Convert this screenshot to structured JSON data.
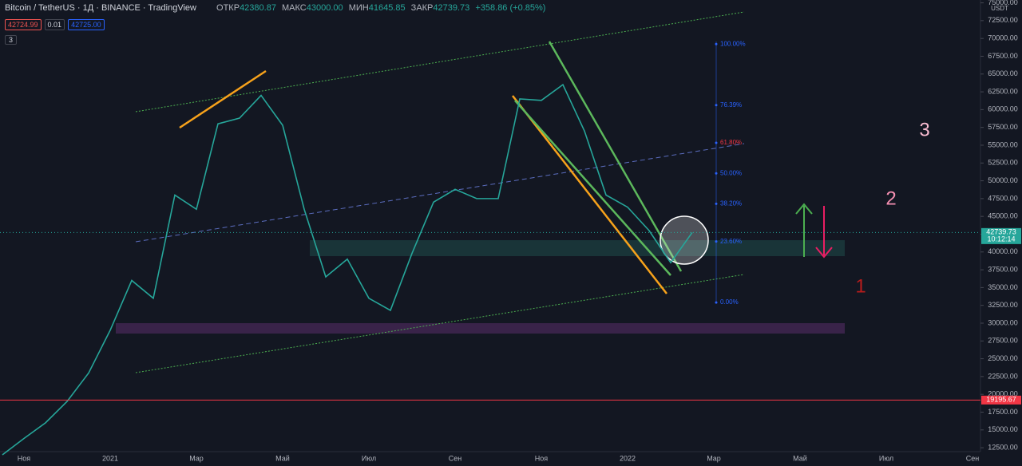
{
  "header": {
    "symbol": "Bitcoin / TetherUS · 1Д · BINANCE · TradingView",
    "ohlc": [
      {
        "label": "ОТКР",
        "value": "42380.87"
      },
      {
        "label": "МАКС",
        "value": "43000.00"
      },
      {
        "label": "МИН",
        "value": "41645.85"
      },
      {
        "label": "ЗАКР",
        "value": "42739.73"
      }
    ],
    "change": "+358.86 (+0.85%)"
  },
  "order_panel": {
    "sell": "42724.99",
    "qty": "0.01",
    "buy": "42725.00"
  },
  "indicator_count": "3",
  "chart_data": {
    "type": "line",
    "currency": "USDT",
    "categories": [
      null,
      "Ноя",
      null,
      null,
      null,
      "2021",
      null,
      null,
      null,
      "Мар",
      null,
      null,
      null,
      "Май",
      null,
      null,
      null,
      "Июл",
      null,
      null,
      null,
      "Сен",
      null,
      null,
      null,
      "Ноя",
      null,
      null,
      null,
      "2022",
      null,
      null,
      null,
      "Мар",
      null,
      null,
      null,
      "Май",
      null,
      null,
      null,
      "Июл",
      null,
      null,
      null,
      "Сен"
    ],
    "series": [
      {
        "color": "#26a69a",
        "values": [
          11500,
          13800,
          16000,
          19000,
          23000,
          29000,
          36000,
          33500,
          48000,
          46000,
          58000,
          58800,
          62000,
          57800,
          46000,
          36500,
          39000,
          33500,
          31800,
          39800,
          47000,
          48800,
          47500,
          47500,
          61500,
          61300,
          63500,
          57000,
          48000,
          46300,
          43000,
          38500,
          42739.73,
          null,
          null,
          null,
          null,
          null,
          null,
          null,
          null,
          null,
          null,
          null,
          null,
          null
        ]
      }
    ],
    "ylim": [
      11950,
      75400
    ],
    "yticks": [
      {
        "value": 12500,
        "label": "12500.00"
      },
      {
        "value": 15000,
        "label": "15000.00"
      },
      {
        "value": 17500,
        "label": "17500.00"
      },
      {
        "value": 20000,
        "label": "20000.00"
      },
      {
        "value": 22500,
        "label": "22500.00"
      },
      {
        "value": 25000,
        "label": "25000.00"
      },
      {
        "value": 27500,
        "label": "27500.00"
      },
      {
        "value": 30000,
        "label": "30000.00"
      },
      {
        "value": 32500,
        "label": "32500.00"
      },
      {
        "value": 35000,
        "label": "35000.00"
      },
      {
        "value": 37500,
        "label": "37500.00"
      },
      {
        "value": 40000,
        "label": "40000.00"
      },
      {
        "value": 42500,
        "label": "42500.00"
      },
      {
        "value": 45000,
        "label": "45000.00"
      },
      {
        "value": 47500,
        "label": "47500.00"
      },
      {
        "value": 50000,
        "label": "50000.00"
      },
      {
        "value": 52500,
        "label": "52500.00"
      },
      {
        "value": 55000,
        "label": "55000.00"
      },
      {
        "value": 57500,
        "label": "57500.00"
      },
      {
        "value": 60000,
        "label": "60000.00"
      },
      {
        "value": 62500,
        "label": "62500.00"
      },
      {
        "value": 65000,
        "label": "65000.00"
      },
      {
        "value": 67500,
        "label": "67500.00"
      },
      {
        "value": 70000,
        "label": "70000.00"
      },
      {
        "value": 72500,
        "label": "72500.00"
      },
      {
        "value": 75000,
        "label": "75000.00"
      }
    ],
    "price_lines": [
      {
        "value": 42739.73,
        "countdown": "10:12:14",
        "color": "#26a69a"
      },
      {
        "value": 19195.67,
        "color": "#f23645"
      }
    ],
    "fib_levels": [
      {
        "value": 69200,
        "label": "100.00%"
      },
      {
        "value": 60630,
        "label": "76.39%"
      },
      {
        "value": 55330,
        "label": "61.80%"
      },
      {
        "value": 51050,
        "label": "50.00%"
      },
      {
        "value": 46770,
        "label": "38.20%"
      },
      {
        "value": 41470,
        "label": "23.60%"
      },
      {
        "value": 32900,
        "label": "0.00%"
      }
    ],
    "annotations": [
      "1",
      "2",
      "3"
    ]
  }
}
